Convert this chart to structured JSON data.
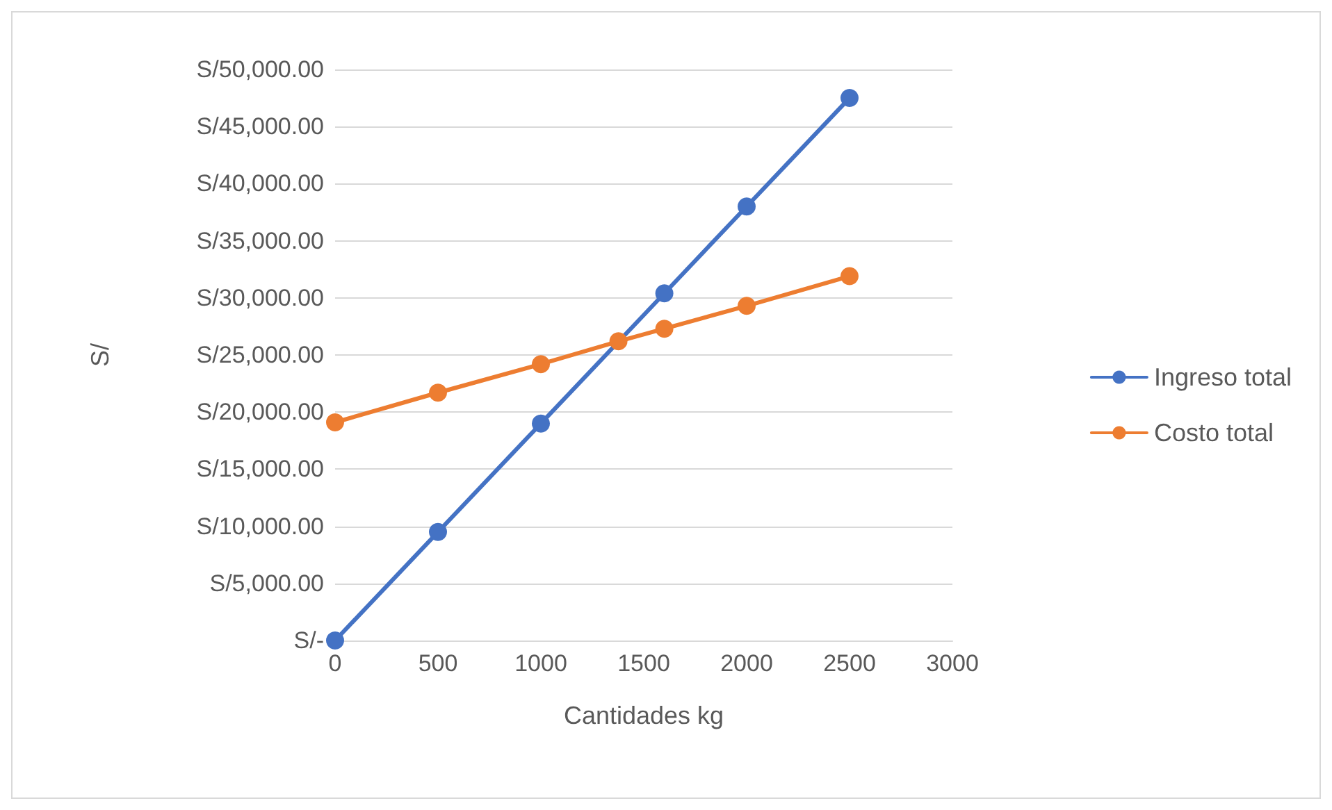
{
  "chart_data": {
    "type": "line",
    "xlabel": "Cantidades kg",
    "ylabel": "S/",
    "xlim": [
      0,
      3000
    ],
    "xticks": [
      0,
      500,
      1000,
      1500,
      2000,
      2500,
      3000
    ],
    "ylim": [
      0,
      50000
    ],
    "yticks": [
      {
        "value": 0,
        "label": "S/-"
      },
      {
        "value": 5000,
        "label": "S/5,000.00"
      },
      {
        "value": 10000,
        "label": "S/10,000.00"
      },
      {
        "value": 15000,
        "label": "S/15,000.00"
      },
      {
        "value": 20000,
        "label": "S/20,000.00"
      },
      {
        "value": 25000,
        "label": "S/25,000.00"
      },
      {
        "value": 30000,
        "label": "S/30,000.00"
      },
      {
        "value": 35000,
        "label": "S/35,000.00"
      },
      {
        "value": 40000,
        "label": "S/40,000.00"
      },
      {
        "value": 45000,
        "label": "S/45,000.00"
      },
      {
        "value": 50000,
        "label": "S/50,000.00"
      }
    ],
    "x": [
      0,
      500,
      1000,
      1377,
      1600,
      2000,
      2500
    ],
    "series": [
      {
        "name": "Ingreso total",
        "color": "#4472c4",
        "values": [
          0,
          9500,
          19000,
          null,
          30400,
          38000,
          47500
        ]
      },
      {
        "name": "Costo total",
        "color": "#ed7d31",
        "values": [
          19100,
          21700,
          24200,
          26200,
          27300,
          29300,
          31900
        ]
      }
    ],
    "grid": "y",
    "legend": "right",
    "marker": "circle",
    "line_style": "solid"
  }
}
